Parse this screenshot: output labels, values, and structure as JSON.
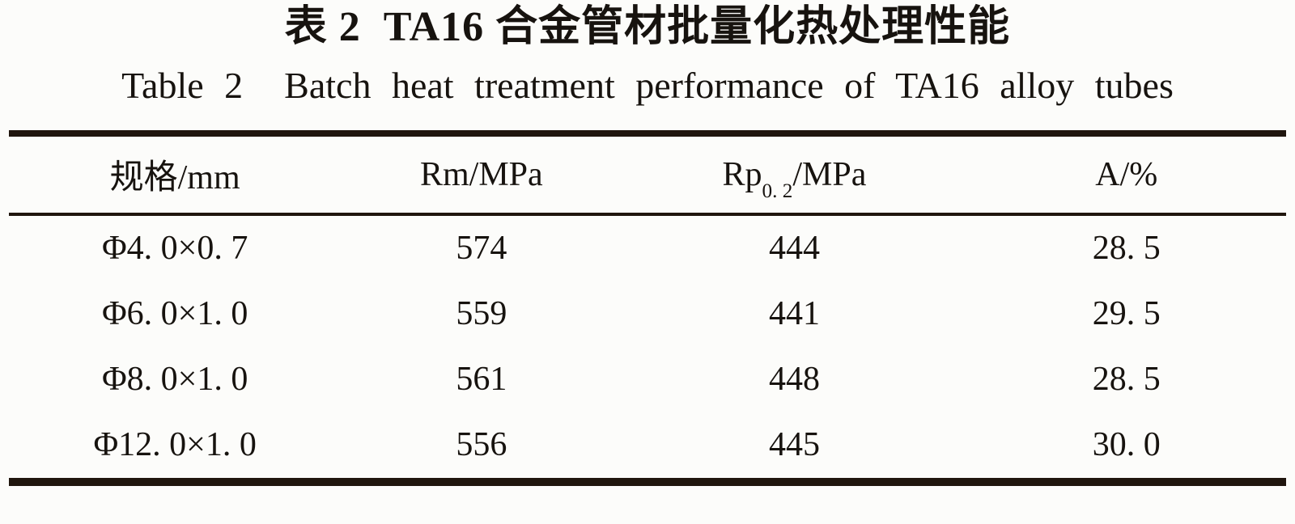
{
  "page": {
    "title_cn": "表 2  TA16 合金管材批量化热处理性能",
    "title_en": "Table 2  Batch heat treatment performance of TA16 alloy tubes"
  },
  "header_display": {
    "col1": "规格/mm",
    "col2": "Rm/MPa",
    "col3_base": "Rp",
    "col3_sub": "0. 2",
    "col3_rest": "/MPa",
    "col4": "A/%"
  },
  "chart_data": {
    "type": "table",
    "title": "表2 TA16合金管材批量化热处理性能",
    "title_en": "Table 2 Batch heat treatment performance of TA16 alloy tubes",
    "columns": [
      "规格/mm",
      "Rm/MPa",
      "Rp0.2/MPa",
      "A/%"
    ],
    "rows": [
      [
        "Φ4. 0×0. 7",
        "574",
        "444",
        "28. 5"
      ],
      [
        "Φ6. 0×1. 0",
        "559",
        "441",
        "29. 5"
      ],
      [
        "Φ8. 0×1. 0",
        "561",
        "448",
        "28. 5"
      ],
      [
        "Φ12. 0×1. 0",
        "556",
        "445",
        "30. 0"
      ]
    ],
    "numeric_data": {
      "spec_mm": [
        "4.0x0.7",
        "6.0x1.0",
        "8.0x1.0",
        "12.0x1.0"
      ],
      "Rm_MPa": [
        574,
        559,
        561,
        556
      ],
      "Rp02_MPa": [
        444,
        441,
        448,
        445
      ],
      "A_percent": [
        28.5,
        29.5,
        28.5,
        30.0
      ]
    }
  },
  "colors": {
    "background": "#fcfcfa",
    "text": "#17130f",
    "rule": "#20160e"
  }
}
